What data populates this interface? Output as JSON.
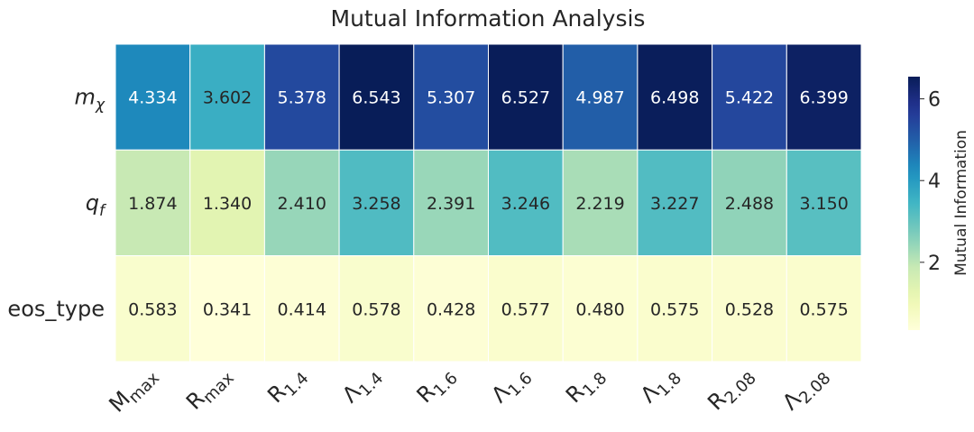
{
  "chart_data": {
    "type": "heatmap",
    "title": "Mutual Information Analysis",
    "rows": [
      {
        "base": "m",
        "sub": "χ",
        "italic": true
      },
      {
        "base": "q",
        "sub": "f",
        "italic": true
      },
      {
        "base": "eos_type",
        "sub": "",
        "italic": false
      }
    ],
    "columns": [
      {
        "base": "M",
        "sub": "max"
      },
      {
        "base": "R",
        "sub": "max"
      },
      {
        "base": "R",
        "sub": "1.4"
      },
      {
        "base": "Λ",
        "sub": "1.4"
      },
      {
        "base": "R",
        "sub": "1.6"
      },
      {
        "base": "Λ",
        "sub": "1.6"
      },
      {
        "base": "R",
        "sub": "1.8"
      },
      {
        "base": "Λ",
        "sub": "1.8"
      },
      {
        "base": "R",
        "sub": "2.08"
      },
      {
        "base": "Λ",
        "sub": "2.08"
      }
    ],
    "values": [
      [
        4.334,
        3.602,
        5.378,
        6.543,
        5.307,
        6.527,
        4.987,
        6.498,
        5.422,
        6.399
      ],
      [
        1.874,
        1.34,
        2.41,
        3.258,
        2.391,
        3.246,
        2.219,
        3.227,
        2.488,
        3.15
      ],
      [
        0.583,
        0.341,
        0.414,
        0.578,
        0.428,
        0.577,
        0.48,
        0.575,
        0.528,
        0.575
      ]
    ],
    "value_labels": [
      [
        "4.334",
        "3.602",
        "5.378",
        "6.543",
        "5.307",
        "6.527",
        "4.987",
        "6.498",
        "5.422",
        "6.399"
      ],
      [
        "1.874",
        "1.340",
        "2.410",
        "3.258",
        "2.391",
        "3.246",
        "2.219",
        "3.227",
        "2.488",
        "3.150"
      ],
      [
        "0.583",
        "0.341",
        "0.414",
        "0.578",
        "0.428",
        "0.577",
        "0.480",
        "0.575",
        "0.528",
        "0.575"
      ]
    ],
    "colormap": "YlGnBu",
    "vmin": 0.341,
    "vmax": 6.543,
    "colorbar": {
      "label": "Mutual Information",
      "ticks": [
        2,
        4,
        6
      ],
      "tick_labels": [
        "2",
        "4",
        "6"
      ]
    }
  }
}
